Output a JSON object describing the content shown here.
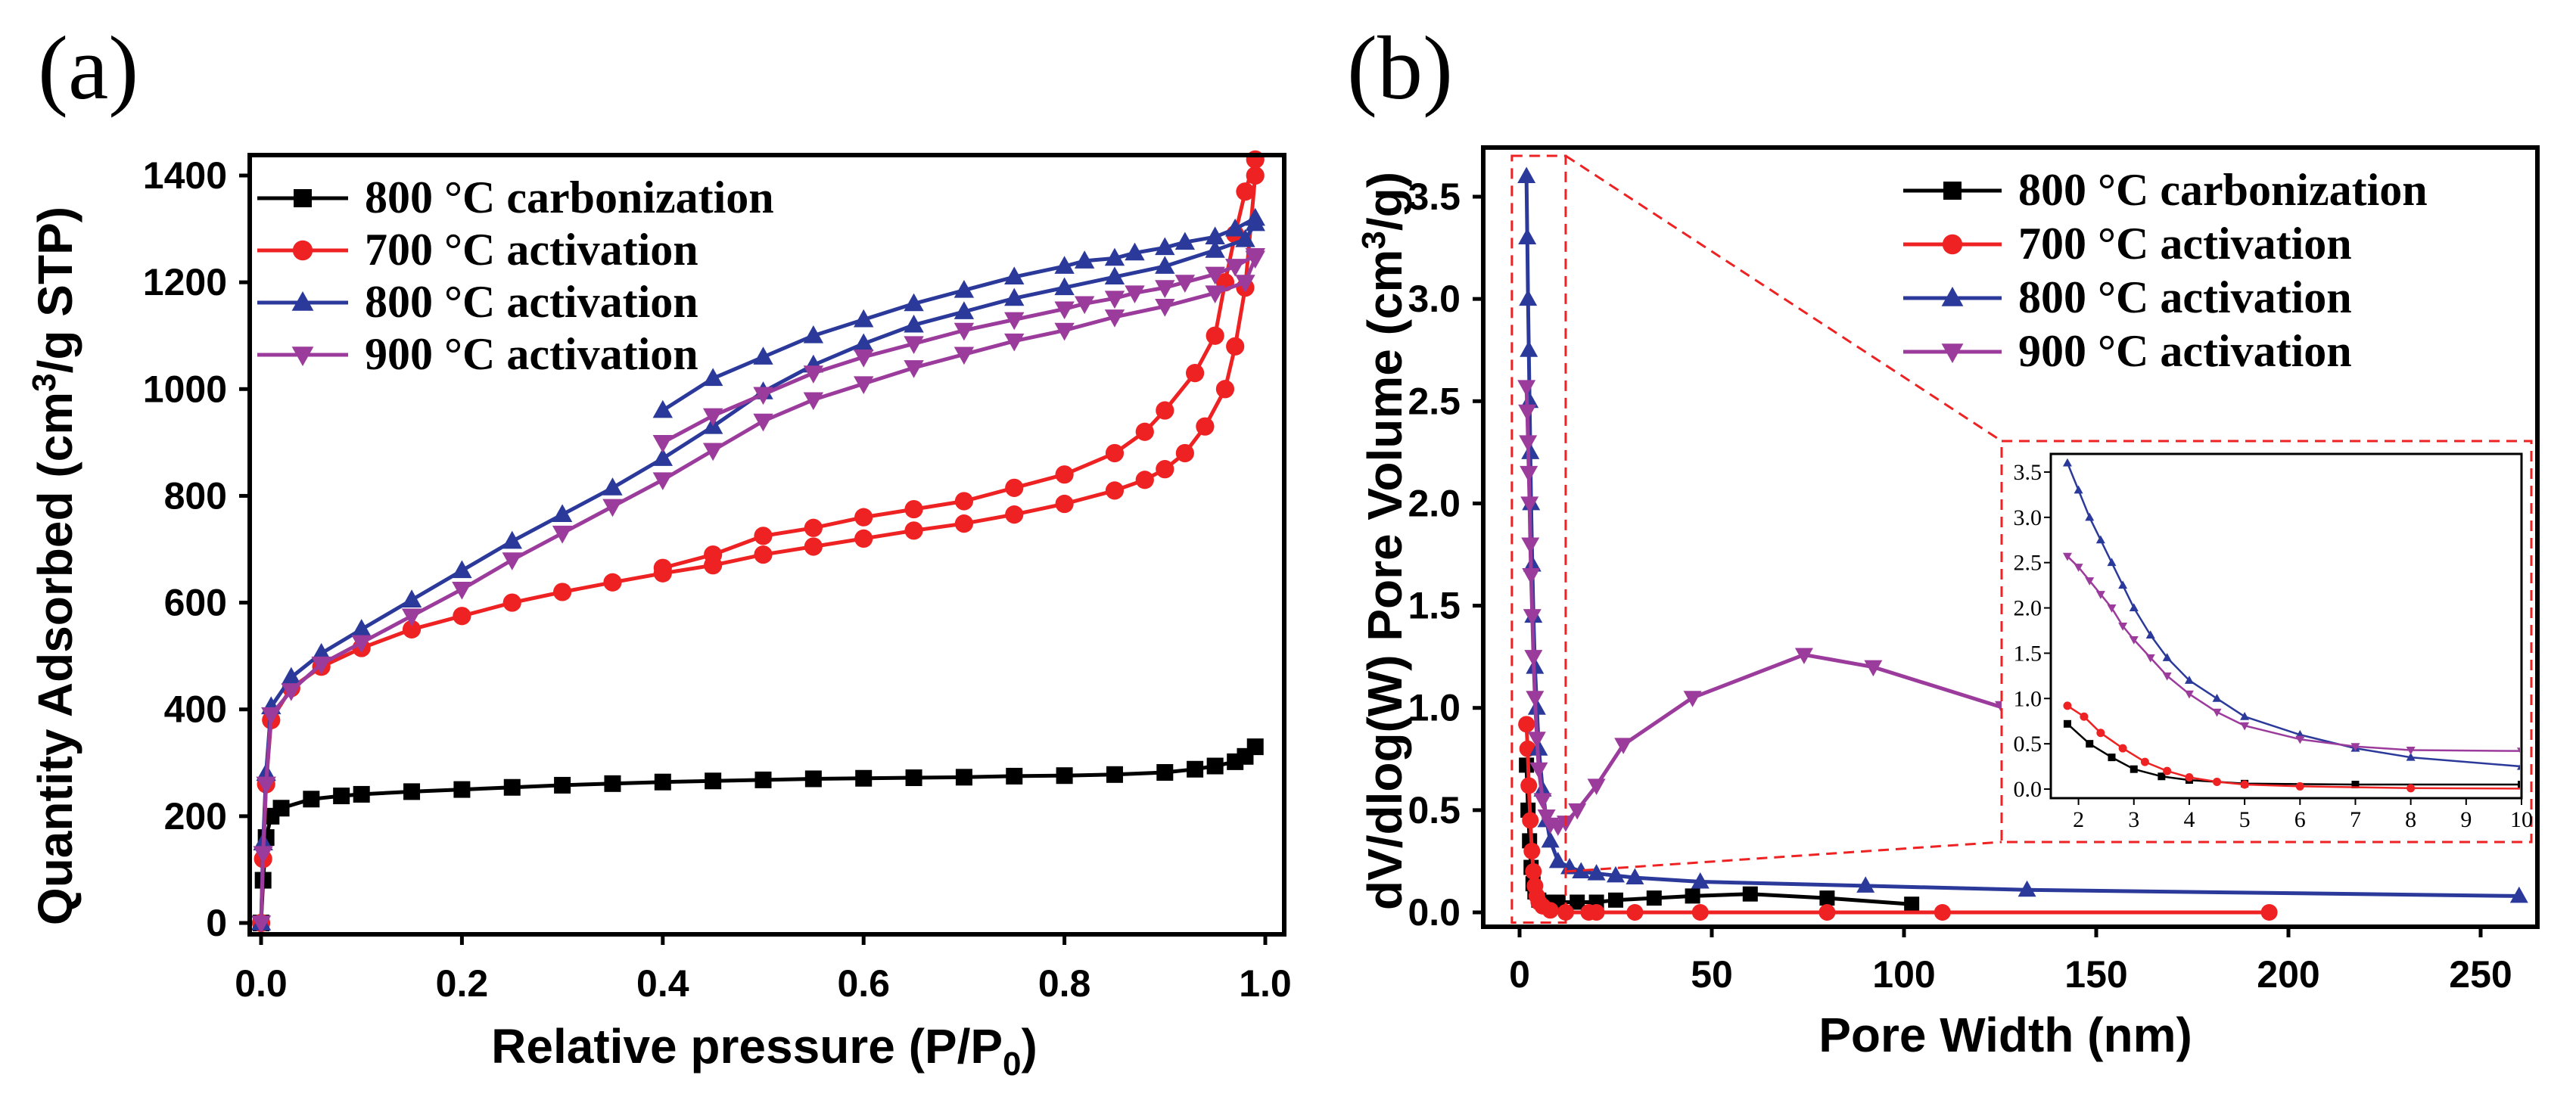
{
  "colors": {
    "carb800": "#000000",
    "act700": "#ee2222",
    "act800": "#2b3a9a",
    "act900": "#9b3b9c",
    "zoom_box": "#ee2222"
  },
  "chart_data": [
    {
      "panel": "(a)",
      "type": "line",
      "title": "",
      "xlabel": "Relative pressure (P/P0)",
      "xlabel_main": "Relative pressure (P/P",
      "xlabel_sub": "0",
      "xlabel_close": ")",
      "ylabel": "Quantity Adsorbed (cm3/g STP)",
      "ylabel_main": "Quantity Adsorbed (cm",
      "ylabel_sup": "3",
      "ylabel_rest": "/g STP)",
      "xlim": [
        0,
        1.0
      ],
      "ylim": [
        0,
        1450
      ],
      "xticks": [
        0.0,
        0.2,
        0.4,
        0.6,
        0.8,
        1.0
      ],
      "xtick_labels": [
        "0.0",
        "0.2",
        "0.4",
        "0.6",
        "0.8",
        "1.0"
      ],
      "yticks": [
        0,
        200,
        400,
        600,
        800,
        1000,
        1200,
        1400
      ],
      "ytick_labels": [
        "0",
        "200",
        "400",
        "600",
        "800",
        "1000",
        "1200",
        "1400"
      ],
      "legend_position": "top-left",
      "series": [
        {
          "name": "800 °C carbonization",
          "color_key": "carb800",
          "marker": "square",
          "x": [
            0.0,
            0.002,
            0.005,
            0.01,
            0.02,
            0.05,
            0.08,
            0.1,
            0.15,
            0.2,
            0.25,
            0.3,
            0.35,
            0.4,
            0.45,
            0.5,
            0.55,
            0.6,
            0.65,
            0.7,
            0.75,
            0.8,
            0.85,
            0.9,
            0.93,
            0.95,
            0.97,
            0.98,
            0.99
          ],
          "y": [
            0,
            80,
            160,
            200,
            215,
            232,
            238,
            241,
            246,
            250,
            254,
            258,
            261,
            264,
            266,
            268,
            270,
            271,
            272,
            273,
            275,
            276,
            278,
            282,
            288,
            294,
            302,
            312,
            330
          ]
        },
        {
          "name": "700 °C activation",
          "color_key": "act700",
          "marker": "circle",
          "x": [
            0.0,
            0.002,
            0.005,
            0.01,
            0.03,
            0.06,
            0.1,
            0.15,
            0.2,
            0.25,
            0.3,
            0.35,
            0.4,
            0.45,
            0.5,
            0.55,
            0.6,
            0.65,
            0.7,
            0.75,
            0.8,
            0.85,
            0.88,
            0.9,
            0.92,
            0.94,
            0.96,
            0.97,
            0.98,
            0.99,
            0.99,
            0.98,
            0.97,
            0.96,
            0.95,
            0.93,
            0.9,
            0.88,
            0.85,
            0.8,
            0.75,
            0.7,
            0.65,
            0.6,
            0.55,
            0.5,
            0.45,
            0.4
          ],
          "y": [
            0,
            120,
            260,
            380,
            440,
            480,
            515,
            550,
            575,
            600,
            620,
            638,
            655,
            670,
            690,
            705,
            720,
            735,
            748,
            765,
            785,
            810,
            830,
            850,
            880,
            930,
            1000,
            1080,
            1190,
            1400,
            1430,
            1370,
            1290,
            1200,
            1100,
            1030,
            960,
            920,
            880,
            840,
            815,
            790,
            775,
            760,
            740,
            725,
            690,
            665
          ]
        },
        {
          "name": "800 °C activation",
          "color_key": "act800",
          "marker": "triangle-up",
          "x": [
            0.0,
            0.002,
            0.005,
            0.01,
            0.03,
            0.06,
            0.1,
            0.15,
            0.2,
            0.25,
            0.3,
            0.35,
            0.4,
            0.45,
            0.5,
            0.55,
            0.6,
            0.65,
            0.7,
            0.75,
            0.8,
            0.85,
            0.9,
            0.95,
            0.98,
            0.99,
            0.99,
            0.97,
            0.95,
            0.92,
            0.9,
            0.87,
            0.85,
            0.82,
            0.8,
            0.75,
            0.7,
            0.65,
            0.6,
            0.55,
            0.5,
            0.45,
            0.4
          ],
          "y": [
            0,
            150,
            280,
            405,
            460,
            505,
            550,
            605,
            660,
            715,
            765,
            815,
            870,
            930,
            995,
            1045,
            1085,
            1120,
            1145,
            1170,
            1190,
            1210,
            1230,
            1260,
            1280,
            1310,
            1320,
            1300,
            1285,
            1275,
            1265,
            1255,
            1245,
            1240,
            1230,
            1210,
            1185,
            1160,
            1130,
            1100,
            1060,
            1020,
            960
          ]
        },
        {
          "name": "900 °C activation",
          "color_key": "act900",
          "marker": "triangle-down",
          "x": [
            0.0,
            0.002,
            0.005,
            0.01,
            0.03,
            0.06,
            0.1,
            0.15,
            0.2,
            0.25,
            0.3,
            0.35,
            0.4,
            0.45,
            0.5,
            0.55,
            0.6,
            0.65,
            0.7,
            0.75,
            0.8,
            0.85,
            0.9,
            0.95,
            0.98,
            0.99,
            0.99,
            0.97,
            0.95,
            0.92,
            0.9,
            0.87,
            0.85,
            0.82,
            0.8,
            0.75,
            0.7,
            0.65,
            0.6,
            0.55,
            0.5,
            0.45,
            0.4
          ],
          "y": [
            0,
            130,
            260,
            390,
            435,
            485,
            525,
            575,
            625,
            680,
            730,
            780,
            830,
            885,
            940,
            980,
            1010,
            1040,
            1065,
            1090,
            1110,
            1135,
            1155,
            1180,
            1200,
            1245,
            1250,
            1230,
            1215,
            1200,
            1190,
            1180,
            1170,
            1160,
            1150,
            1130,
            1110,
            1085,
            1060,
            1030,
            990,
            950,
            900
          ]
        }
      ]
    },
    {
      "panel": "(b)",
      "type": "line",
      "title": "",
      "xlabel": "Pore Width (nm)",
      "ylabel": "dV/dlog(W) Pore Volume (cm3/g)",
      "ylabel_main": "dV/dlog(W) Pore Volume (cm",
      "ylabel_sup": "3",
      "ylabel_rest": "/g)",
      "xlim": [
        -5,
        260
      ],
      "ylim": [
        -0.05,
        3.7
      ],
      "xticks": [
        0,
        50,
        100,
        150,
        200,
        250
      ],
      "xtick_labels": [
        "0",
        "50",
        "100",
        "150",
        "200",
        "250"
      ],
      "yticks": [
        0.0,
        0.5,
        1.0,
        1.5,
        2.0,
        2.5,
        3.0,
        3.5
      ],
      "ytick_labels": [
        "0.0",
        "0.5",
        "1.0",
        "1.5",
        "2.0",
        "2.5",
        "3.0",
        "3.5"
      ],
      "legend_position": "top-right",
      "zoom_region": {
        "x": [
          -2,
          12
        ],
        "y": [
          -0.05,
          3.7
        ]
      },
      "series": [
        {
          "name": "800 °C carbonization",
          "color_key": "carb800",
          "marker": "square",
          "x": [
            1.8,
            2.2,
            2.6,
            3.0,
            3.5,
            4.0,
            5,
            7,
            10,
            15,
            20,
            25,
            35,
            45,
            60,
            80,
            102
          ],
          "y": [
            0.72,
            0.5,
            0.35,
            0.22,
            0.14,
            0.1,
            0.06,
            0.05,
            0.05,
            0.05,
            0.05,
            0.06,
            0.07,
            0.08,
            0.09,
            0.07,
            0.04
          ]
        },
        {
          "name": "700 °C activation",
          "color_key": "act700",
          "marker": "circle",
          "x": [
            1.8,
            2.1,
            2.4,
            2.8,
            3.2,
            3.6,
            4.0,
            4.5,
            5,
            6,
            8,
            12,
            18,
            20,
            30,
            47,
            80,
            110,
            195
          ],
          "y": [
            0.92,
            0.8,
            0.62,
            0.45,
            0.3,
            0.2,
            0.13,
            0.08,
            0.05,
            0.03,
            0.01,
            0.0,
            0.0,
            0.0,
            0.0,
            0.0,
            0.0,
            0.0,
            0.0
          ]
        },
        {
          "name": "800 °C activation",
          "color_key": "act800",
          "marker": "triangle-up",
          "x": [
            1.8,
            2.0,
            2.2,
            2.4,
            2.6,
            2.8,
            3.0,
            3.3,
            3.6,
            4.0,
            4.5,
            5,
            6,
            7,
            8,
            10,
            13,
            16,
            20,
            25,
            30,
            47,
            90,
            132,
            260
          ],
          "y": [
            3.6,
            3.3,
            3.0,
            2.75,
            2.5,
            2.25,
            2.0,
            1.7,
            1.45,
            1.2,
            1.0,
            0.8,
            0.6,
            0.45,
            0.35,
            0.25,
            0.22,
            0.2,
            0.19,
            0.18,
            0.17,
            0.15,
            0.13,
            0.11,
            0.08
          ]
        },
        {
          "name": "900 °C activation",
          "color_key": "act900",
          "marker": "triangle-down",
          "x": [
            1.8,
            2.0,
            2.2,
            2.4,
            2.6,
            2.8,
            3.0,
            3.3,
            3.6,
            4.0,
            4.5,
            5,
            6,
            7,
            8,
            10,
            12,
            15,
            20,
            27,
            45,
            74,
            92,
            126
          ],
          "y": [
            2.57,
            2.45,
            2.3,
            2.15,
            2.0,
            1.8,
            1.65,
            1.45,
            1.25,
            1.05,
            0.85,
            0.7,
            0.55,
            0.47,
            0.43,
            0.42,
            0.44,
            0.5,
            0.62,
            0.82,
            1.05,
            1.26,
            1.2,
            1.0
          ]
        }
      ],
      "inset": {
        "xlim": [
          1.5,
          10
        ],
        "ylim": [
          -0.1,
          3.7
        ],
        "xticks": [
          2,
          3,
          4,
          5,
          6,
          7,
          8,
          9,
          10
        ],
        "xtick_labels": [
          "2",
          "3",
          "4",
          "5",
          "6",
          "7",
          "8",
          "9",
          "10"
        ],
        "yticks": [
          0.0,
          0.5,
          1.0,
          1.5,
          2.0,
          2.5,
          3.0,
          3.5
        ],
        "ytick_labels": [
          "0.0",
          "0.5",
          "1.0",
          "1.5",
          "2.0",
          "2.5",
          "3.0",
          "3.5"
        ]
      }
    }
  ]
}
